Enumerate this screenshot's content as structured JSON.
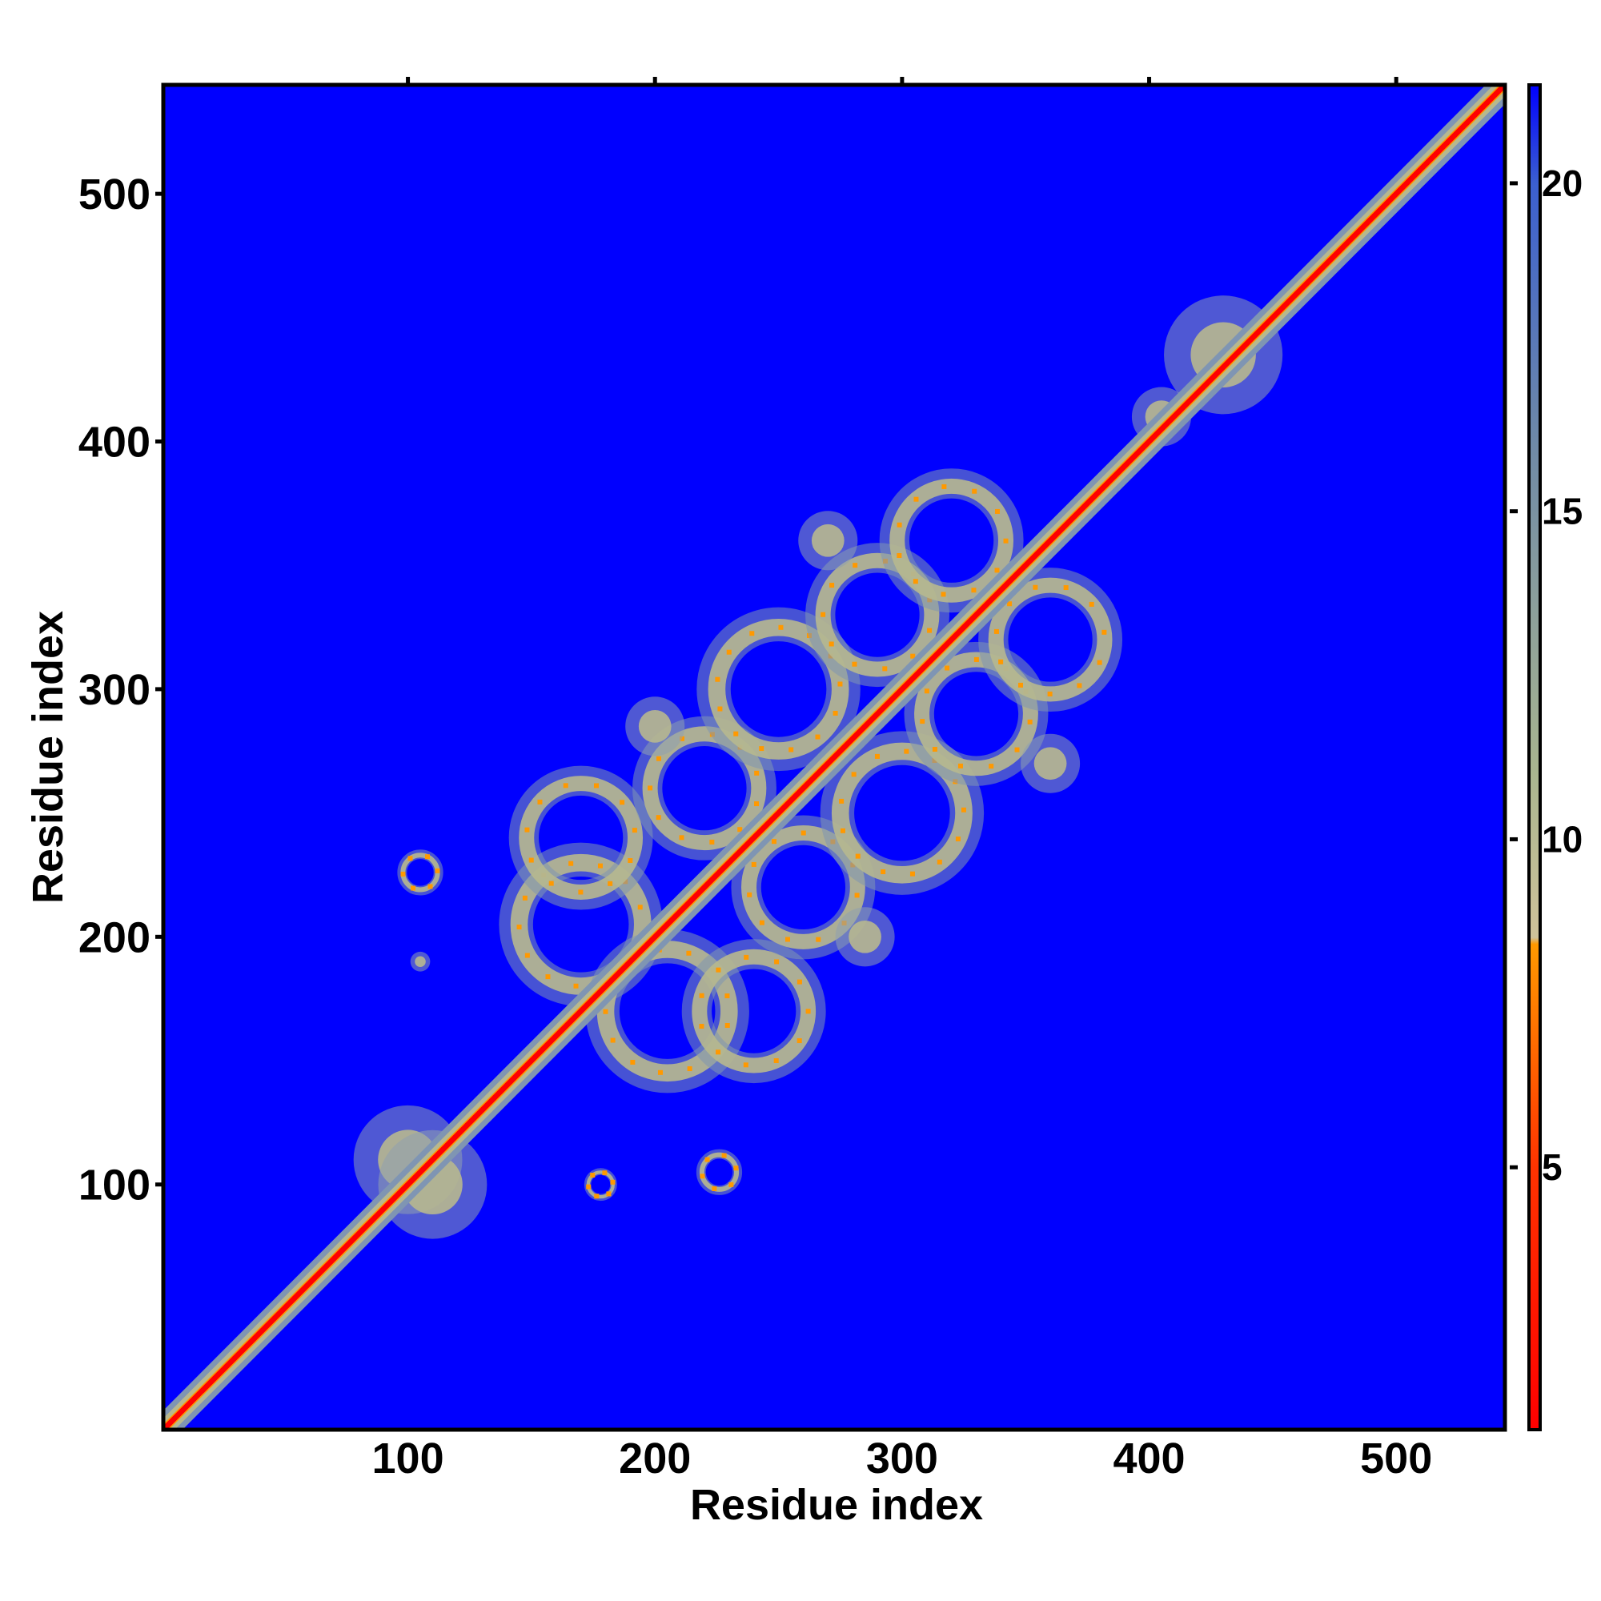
{
  "chart_data": {
    "type": "heatmap",
    "title": "",
    "xlabel": "Residue index",
    "ylabel": "Residue index",
    "xlim": [
      1,
      544
    ],
    "ylim": [
      1,
      544
    ],
    "xticks": [
      "100",
      "200",
      "300",
      "400",
      "500"
    ],
    "yticks": [
      "100",
      "200",
      "300",
      "400",
      "500"
    ],
    "xtick_values": [
      100,
      200,
      300,
      400,
      500
    ],
    "ytick_values": [
      100,
      200,
      300,
      400,
      500
    ],
    "colorbar": {
      "range": [
        1,
        21.5
      ],
      "ticks": [
        "5",
        "10",
        "15",
        "20"
      ],
      "tick_values": [
        5,
        10,
        15,
        20
      ],
      "stops": [
        {
          "value": 1,
          "color": "#ff0000"
        },
        {
          "value": 5,
          "color": "#ff3300"
        },
        {
          "value": 8.4,
          "color": "#ff9900"
        },
        {
          "value": 8.5,
          "color": "#cfc29a"
        },
        {
          "value": 11,
          "color": "#a9b58f"
        },
        {
          "value": 16,
          "color": "#6f8aa7"
        },
        {
          "value": 20,
          "color": "#3b5fd0"
        },
        {
          "value": 21.5,
          "color": "#0000ff"
        }
      ]
    },
    "background_value": 21.5,
    "background_color": "#0000ff",
    "diagonal_color": "#ff0000",
    "contact_clusters": [
      {
        "x": 100,
        "y": 110,
        "type": "blob",
        "size": 22
      },
      {
        "x": 110,
        "y": 100,
        "type": "blob",
        "size": 22
      },
      {
        "x": 105,
        "y": 226,
        "type": "ring",
        "size": 7
      },
      {
        "x": 105,
        "y": 190,
        "type": "blob",
        "size": 4
      },
      {
        "x": 178,
        "y": 100,
        "type": "ring",
        "size": 5
      },
      {
        "x": 226,
        "y": 105,
        "type": "ring",
        "size": 7
      },
      {
        "x": 170,
        "y": 205,
        "type": "ring",
        "size": 25
      },
      {
        "x": 205,
        "y": 170,
        "type": "ring",
        "size": 25
      },
      {
        "x": 240,
        "y": 170,
        "type": "ring",
        "size": 22
      },
      {
        "x": 170,
        "y": 240,
        "type": "ring",
        "size": 22
      },
      {
        "x": 220,
        "y": 260,
        "type": "ring",
        "size": 22
      },
      {
        "x": 260,
        "y": 220,
        "type": "ring",
        "size": 22
      },
      {
        "x": 250,
        "y": 300,
        "type": "ring",
        "size": 25
      },
      {
        "x": 300,
        "y": 250,
        "type": "ring",
        "size": 25
      },
      {
        "x": 290,
        "y": 330,
        "type": "ring",
        "size": 22
      },
      {
        "x": 330,
        "y": 290,
        "type": "ring",
        "size": 22
      },
      {
        "x": 320,
        "y": 360,
        "type": "ring",
        "size": 22
      },
      {
        "x": 360,
        "y": 320,
        "type": "ring",
        "size": 22
      },
      {
        "x": 285,
        "y": 200,
        "type": "blob",
        "size": 12
      },
      {
        "x": 200,
        "y": 285,
        "type": "blob",
        "size": 12
      },
      {
        "x": 360,
        "y": 270,
        "type": "blob",
        "size": 12
      },
      {
        "x": 270,
        "y": 360,
        "type": "blob",
        "size": 12
      },
      {
        "x": 405,
        "y": 410,
        "type": "blob",
        "size": 12
      },
      {
        "x": 430,
        "y": 435,
        "type": "blob",
        "size": 24
      }
    ]
  }
}
